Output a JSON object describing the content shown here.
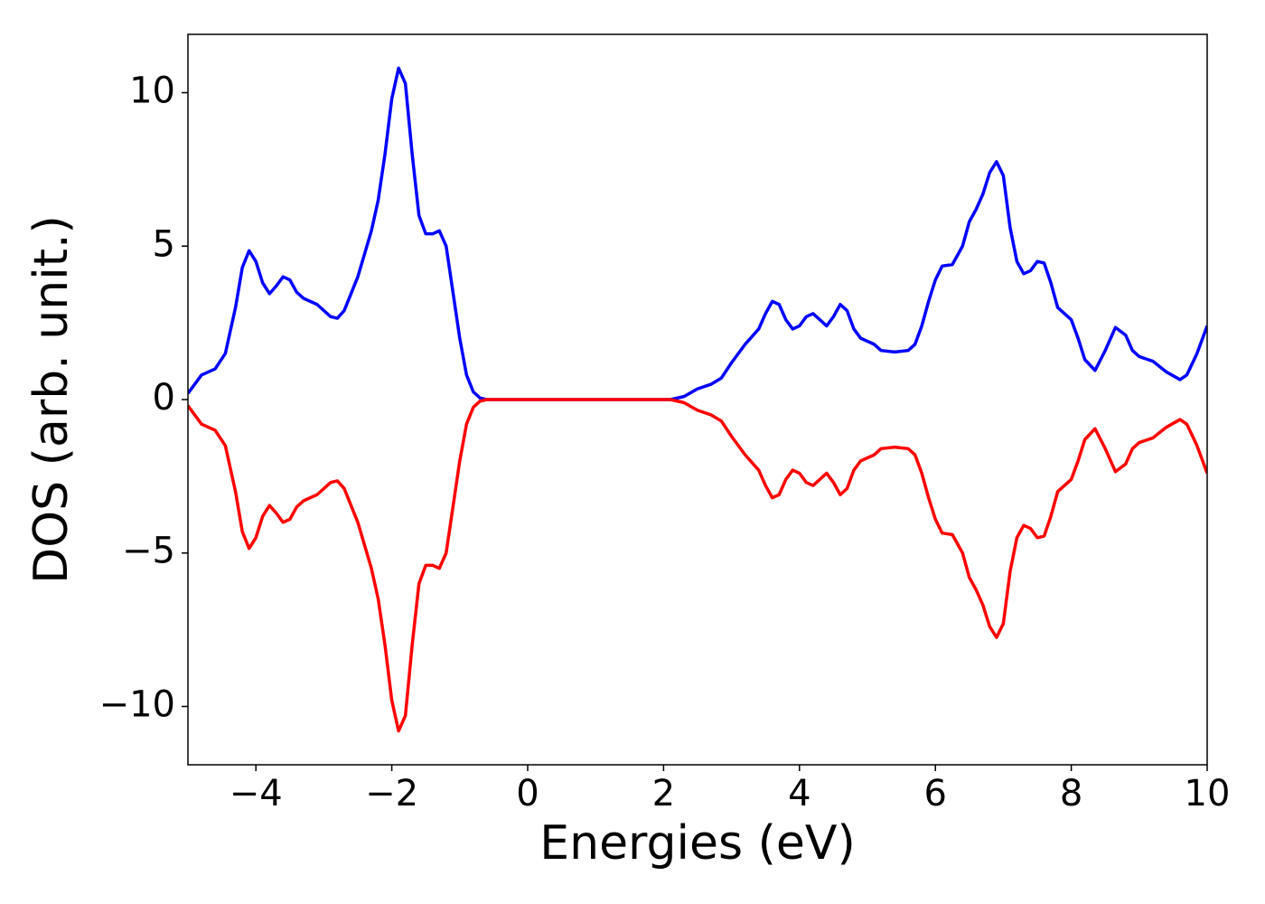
{
  "chart_data": {
    "type": "line",
    "xlabel": "Energies (eV)",
    "ylabel": "DOS (arb. unit.)",
    "x": [
      -5.0,
      -4.8,
      -4.6,
      -4.45,
      -4.3,
      -4.2,
      -4.1,
      -4.0,
      -3.9,
      -3.8,
      -3.7,
      -3.6,
      -3.5,
      -3.4,
      -3.3,
      -3.1,
      -2.9,
      -2.8,
      -2.7,
      -2.5,
      -2.3,
      -2.2,
      -2.1,
      -2.0,
      -1.9,
      -1.8,
      -1.7,
      -1.6,
      -1.5,
      -1.4,
      -1.3,
      -1.2,
      -1.1,
      -1.0,
      -0.9,
      -0.8,
      -0.7,
      -0.6,
      2.1,
      2.3,
      2.5,
      2.7,
      2.85,
      3.0,
      3.2,
      3.4,
      3.5,
      3.6,
      3.7,
      3.8,
      3.9,
      4.0,
      4.1,
      4.2,
      4.3,
      4.4,
      4.5,
      4.6,
      4.7,
      4.8,
      4.9,
      5.1,
      5.2,
      5.4,
      5.6,
      5.7,
      5.8,
      5.9,
      6.0,
      6.1,
      6.25,
      6.4,
      6.5,
      6.6,
      6.7,
      6.8,
      6.9,
      7.0,
      7.1,
      7.2,
      7.3,
      7.4,
      7.5,
      7.6,
      7.7,
      7.8,
      7.9,
      8.0,
      8.1,
      8.2,
      8.35,
      8.5,
      8.65,
      8.8,
      8.9,
      9.0,
      9.2,
      9.4,
      9.6,
      9.7,
      9.85,
      10.0
    ],
    "series": [
      {
        "color": "#0000ff",
        "values": [
          0.2,
          0.8,
          1.0,
          1.5,
          3.0,
          4.3,
          4.85,
          4.5,
          3.8,
          3.45,
          3.7,
          4.0,
          3.9,
          3.5,
          3.3,
          3.1,
          2.7,
          2.65,
          2.9,
          4.0,
          5.5,
          6.5,
          8.0,
          9.8,
          10.8,
          10.3,
          8.0,
          6.0,
          5.4,
          5.4,
          5.5,
          5.0,
          3.5,
          2.0,
          0.8,
          0.25,
          0.05,
          0,
          0,
          0.1,
          0.35,
          0.5,
          0.7,
          1.2,
          1.8,
          2.3,
          2.8,
          3.2,
          3.1,
          2.6,
          2.3,
          2.4,
          2.7,
          2.8,
          2.6,
          2.4,
          2.7,
          3.1,
          2.9,
          2.3,
          2.0,
          1.8,
          1.6,
          1.55,
          1.6,
          1.8,
          2.4,
          3.2,
          3.9,
          4.35,
          4.4,
          5.0,
          5.8,
          6.2,
          6.7,
          7.4,
          7.75,
          7.3,
          5.6,
          4.5,
          4.1,
          4.2,
          4.5,
          4.45,
          3.8,
          3.0,
          2.8,
          2.6,
          2.0,
          1.3,
          0.95,
          1.6,
          2.35,
          2.1,
          1.6,
          1.4,
          1.25,
          0.9,
          0.65,
          0.8,
          1.5,
          2.4
        ]
      },
      {
        "color": "#ff0000",
        "values": [
          -0.2,
          -0.8,
          -1.0,
          -1.5,
          -3.0,
          -4.3,
          -4.85,
          -4.5,
          -3.8,
          -3.45,
          -3.7,
          -4.0,
          -3.9,
          -3.5,
          -3.3,
          -3.1,
          -2.7,
          -2.65,
          -2.9,
          -4.0,
          -5.5,
          -6.5,
          -8.0,
          -9.8,
          -10.8,
          -10.3,
          -8.0,
          -6.0,
          -5.4,
          -5.4,
          -5.5,
          -5.0,
          -3.5,
          -2.0,
          -0.8,
          -0.25,
          -0.05,
          0,
          0,
          -0.1,
          -0.35,
          -0.5,
          -0.7,
          -1.2,
          -1.8,
          -2.3,
          -2.8,
          -3.2,
          -3.1,
          -2.6,
          -2.3,
          -2.4,
          -2.7,
          -2.8,
          -2.6,
          -2.4,
          -2.7,
          -3.1,
          -2.9,
          -2.3,
          -2.0,
          -1.8,
          -1.6,
          -1.55,
          -1.6,
          -1.8,
          -2.4,
          -3.2,
          -3.9,
          -4.35,
          -4.4,
          -5.0,
          -5.8,
          -6.2,
          -6.7,
          -7.4,
          -7.75,
          -7.3,
          -5.6,
          -4.5,
          -4.1,
          -4.2,
          -4.5,
          -4.45,
          -3.8,
          -3.0,
          -2.8,
          -2.6,
          -2.0,
          -1.3,
          -0.95,
          -1.6,
          -2.35,
          -2.1,
          -1.6,
          -1.4,
          -1.25,
          -0.9,
          -0.65,
          -0.8,
          -1.5,
          -2.4
        ]
      }
    ],
    "xlim": [
      -5,
      10
    ],
    "xticks": [
      {
        "value": -4,
        "label": "−4"
      },
      {
        "value": -2,
        "label": "−2"
      },
      0,
      2,
      4,
      6,
      8,
      10
    ],
    "ylim": [
      -11.9,
      11.9
    ],
    "yticks": [
      {
        "value": -10,
        "label": "−10"
      },
      {
        "value": -5,
        "label": "−5"
      },
      0,
      5,
      10
    ],
    "grid": false
  }
}
